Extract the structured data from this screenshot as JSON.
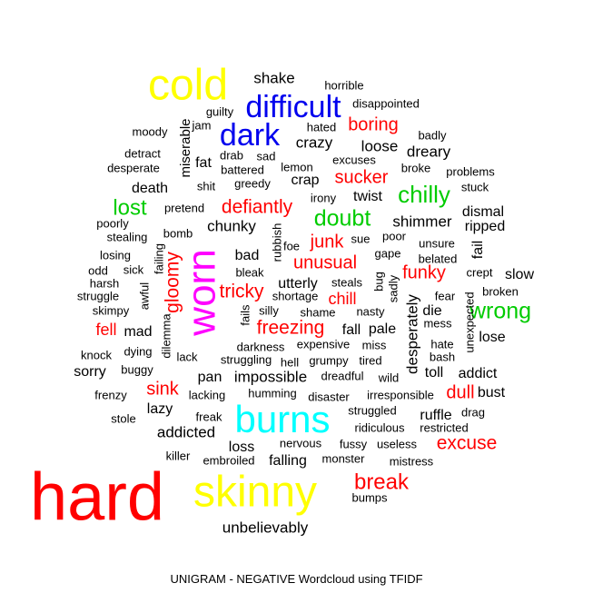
{
  "colors": {
    "black": "#000000",
    "red": "#ff0000",
    "green": "#00cc00",
    "blue": "#0000ee",
    "cyan": "#00ffff",
    "magenta": "#ff00ff",
    "yellow": "#ffff00"
  },
  "caption": "UNIGRAM - NEGATIVE Wordcloud using TFIDF",
  "chart_data": {
    "type": "wordcloud",
    "title": "UNIGRAM - NEGATIVE Wordcloud using TFIDF",
    "words": [
      {
        "text": "hard",
        "color": "red",
        "weight": 1.0
      },
      {
        "text": "skinny",
        "color": "yellow",
        "weight": 0.62
      },
      {
        "text": "cold",
        "color": "yellow",
        "weight": 0.62
      },
      {
        "text": "burns",
        "color": "cyan",
        "weight": 0.55
      },
      {
        "text": "worn",
        "color": "magenta",
        "weight": 0.55
      },
      {
        "text": "difficult",
        "color": "blue",
        "weight": 0.46
      },
      {
        "text": "dark",
        "color": "blue",
        "weight": 0.46
      },
      {
        "text": "break",
        "color": "red",
        "weight": 0.34
      },
      {
        "text": "chilly",
        "color": "green",
        "weight": 0.34
      },
      {
        "text": "doubt",
        "color": "green",
        "weight": 0.32
      },
      {
        "text": "wrong",
        "color": "green",
        "weight": 0.32
      },
      {
        "text": "lost",
        "color": "green",
        "weight": 0.32
      },
      {
        "text": "freezing",
        "color": "red",
        "weight": 0.27
      },
      {
        "text": "defiantly",
        "color": "red",
        "weight": 0.27
      },
      {
        "text": "boring",
        "color": "red",
        "weight": 0.27
      },
      {
        "text": "sucker",
        "color": "red",
        "weight": 0.27
      },
      {
        "text": "gloomy",
        "color": "red",
        "weight": 0.27
      },
      {
        "text": "tricky",
        "color": "red",
        "weight": 0.27
      },
      {
        "text": "unusual",
        "color": "red",
        "weight": 0.27
      },
      {
        "text": "junk",
        "color": "red",
        "weight": 0.27
      },
      {
        "text": "funky",
        "color": "red",
        "weight": 0.27
      },
      {
        "text": "excuse",
        "color": "red",
        "weight": 0.27
      },
      {
        "text": "sink",
        "color": "red",
        "weight": 0.27
      },
      {
        "text": "chill",
        "color": "red",
        "weight": 0.24
      },
      {
        "text": "fell",
        "color": "red",
        "weight": 0.24
      },
      {
        "text": "dull",
        "color": "red",
        "weight": 0.24
      },
      {
        "text": "shake",
        "color": "black",
        "weight": 0.22
      },
      {
        "text": "crazy",
        "color": "black",
        "weight": 0.22
      },
      {
        "text": "loose",
        "color": "black",
        "weight": 0.22
      },
      {
        "text": "dreary",
        "color": "black",
        "weight": 0.22
      },
      {
        "text": "unbelievably",
        "color": "black",
        "weight": 0.22
      },
      {
        "text": "impossible",
        "color": "black",
        "weight": 0.22
      },
      {
        "text": "addicted",
        "color": "black",
        "weight": 0.22
      },
      {
        "text": "desperately",
        "color": "black",
        "weight": 0.22
      },
      {
        "text": "chunky",
        "color": "black",
        "weight": 0.22
      },
      {
        "text": "shimmer",
        "color": "black",
        "weight": 0.2
      },
      {
        "text": "dismal",
        "color": "black",
        "weight": 0.2
      },
      {
        "text": "ripped",
        "color": "black",
        "weight": 0.2
      },
      {
        "text": "slow",
        "color": "black",
        "weight": 0.2
      },
      {
        "text": "lose",
        "color": "black",
        "weight": 0.2
      },
      {
        "text": "miserable",
        "color": "black",
        "weight": 0.2
      },
      {
        "text": "crap",
        "color": "black",
        "weight": 0.2
      },
      {
        "text": "death",
        "color": "black",
        "weight": 0.2
      },
      {
        "text": "twist",
        "color": "black",
        "weight": 0.2
      },
      {
        "text": "fat",
        "color": "black",
        "weight": 0.2
      },
      {
        "text": "bad",
        "color": "black",
        "weight": 0.2
      },
      {
        "text": "pale",
        "color": "black",
        "weight": 0.2
      },
      {
        "text": "utterly",
        "color": "black",
        "weight": 0.2
      },
      {
        "text": "pan",
        "color": "black",
        "weight": 0.2
      },
      {
        "text": "falling",
        "color": "black",
        "weight": 0.2
      },
      {
        "text": "loss",
        "color": "black",
        "weight": 0.2
      },
      {
        "text": "addict",
        "color": "black",
        "weight": 0.2
      },
      {
        "text": "bust",
        "color": "black",
        "weight": 0.2
      },
      {
        "text": "ruffle",
        "color": "black",
        "weight": 0.2
      },
      {
        "text": "toll",
        "color": "black",
        "weight": 0.2
      },
      {
        "text": "lazy",
        "color": "black",
        "weight": 0.2
      },
      {
        "text": "sorry",
        "color": "black",
        "weight": 0.2
      },
      {
        "text": "mad",
        "color": "black",
        "weight": 0.2
      },
      {
        "text": "fail",
        "color": "black",
        "weight": 0.2
      },
      {
        "text": "die",
        "color": "black",
        "weight": 0.2
      },
      {
        "text": "fall",
        "color": "black",
        "weight": 0.2
      },
      {
        "text": "horrible",
        "color": "black",
        "weight": 0.16
      },
      {
        "text": "disappointed",
        "color": "black",
        "weight": 0.16
      },
      {
        "text": "guilty",
        "color": "black",
        "weight": 0.16
      },
      {
        "text": "moody",
        "color": "black",
        "weight": 0.16
      },
      {
        "text": "jam",
        "color": "black",
        "weight": 0.16
      },
      {
        "text": "hated",
        "color": "black",
        "weight": 0.16
      },
      {
        "text": "badly",
        "color": "black",
        "weight": 0.16
      },
      {
        "text": "detract",
        "color": "black",
        "weight": 0.16
      },
      {
        "text": "drab",
        "color": "black",
        "weight": 0.16
      },
      {
        "text": "sad",
        "color": "black",
        "weight": 0.16
      },
      {
        "text": "desperate",
        "color": "black",
        "weight": 0.16
      },
      {
        "text": "battered",
        "color": "black",
        "weight": 0.16
      },
      {
        "text": "lemon",
        "color": "black",
        "weight": 0.16
      },
      {
        "text": "excuses",
        "color": "black",
        "weight": 0.16
      },
      {
        "text": "broke",
        "color": "black",
        "weight": 0.16
      },
      {
        "text": "problems",
        "color": "black",
        "weight": 0.16
      },
      {
        "text": "shit",
        "color": "black",
        "weight": 0.16
      },
      {
        "text": "greedy",
        "color": "black",
        "weight": 0.16
      },
      {
        "text": "stuck",
        "color": "black",
        "weight": 0.16
      },
      {
        "text": "irony",
        "color": "black",
        "weight": 0.16
      },
      {
        "text": "pretend",
        "color": "black",
        "weight": 0.16
      },
      {
        "text": "poorly",
        "color": "black",
        "weight": 0.16
      },
      {
        "text": "stealing",
        "color": "black",
        "weight": 0.16
      },
      {
        "text": "bomb",
        "color": "black",
        "weight": 0.16
      },
      {
        "text": "losing",
        "color": "black",
        "weight": 0.16
      },
      {
        "text": "failing",
        "color": "black",
        "weight": 0.16
      },
      {
        "text": "rubbish",
        "color": "black",
        "weight": 0.16
      },
      {
        "text": "foe",
        "color": "black",
        "weight": 0.16
      },
      {
        "text": "sue",
        "color": "black",
        "weight": 0.16
      },
      {
        "text": "poor",
        "color": "black",
        "weight": 0.16
      },
      {
        "text": "unsure",
        "color": "black",
        "weight": 0.16
      },
      {
        "text": "gape",
        "color": "black",
        "weight": 0.16
      },
      {
        "text": "belated",
        "color": "black",
        "weight": 0.16
      },
      {
        "text": "odd",
        "color": "black",
        "weight": 0.16
      },
      {
        "text": "sick",
        "color": "black",
        "weight": 0.16
      },
      {
        "text": "bleak",
        "color": "black",
        "weight": 0.16
      },
      {
        "text": "crept",
        "color": "black",
        "weight": 0.16
      },
      {
        "text": "harsh",
        "color": "black",
        "weight": 0.16
      },
      {
        "text": "steals",
        "color": "black",
        "weight": 0.16
      },
      {
        "text": "bug",
        "color": "black",
        "weight": 0.16
      },
      {
        "text": "sadly",
        "color": "black",
        "weight": 0.16
      },
      {
        "text": "broken",
        "color": "black",
        "weight": 0.16
      },
      {
        "text": "struggle",
        "color": "black",
        "weight": 0.16
      },
      {
        "text": "awful",
        "color": "black",
        "weight": 0.16
      },
      {
        "text": "shortage",
        "color": "black",
        "weight": 0.16
      },
      {
        "text": "fear",
        "color": "black",
        "weight": 0.16
      },
      {
        "text": "skimpy",
        "color": "black",
        "weight": 0.16
      },
      {
        "text": "fails",
        "color": "black",
        "weight": 0.16
      },
      {
        "text": "silly",
        "color": "black",
        "weight": 0.16
      },
      {
        "text": "shame",
        "color": "black",
        "weight": 0.16
      },
      {
        "text": "nasty",
        "color": "black",
        "weight": 0.16
      },
      {
        "text": "mess",
        "color": "black",
        "weight": 0.16
      },
      {
        "text": "unexpected",
        "color": "black",
        "weight": 0.16
      },
      {
        "text": "dilemma",
        "color": "black",
        "weight": 0.16
      },
      {
        "text": "darkness",
        "color": "black",
        "weight": 0.16
      },
      {
        "text": "expensive",
        "color": "black",
        "weight": 0.16
      },
      {
        "text": "miss",
        "color": "black",
        "weight": 0.16
      },
      {
        "text": "hate",
        "color": "black",
        "weight": 0.16
      },
      {
        "text": "knock",
        "color": "black",
        "weight": 0.16
      },
      {
        "text": "dying",
        "color": "black",
        "weight": 0.16
      },
      {
        "text": "lack",
        "color": "black",
        "weight": 0.16
      },
      {
        "text": "struggling",
        "color": "black",
        "weight": 0.16
      },
      {
        "text": "hell",
        "color": "black",
        "weight": 0.16
      },
      {
        "text": "grumpy",
        "color": "black",
        "weight": 0.16
      },
      {
        "text": "tired",
        "color": "black",
        "weight": 0.16
      },
      {
        "text": "bash",
        "color": "black",
        "weight": 0.16
      },
      {
        "text": "buggy",
        "color": "black",
        "weight": 0.16
      },
      {
        "text": "dreadful",
        "color": "black",
        "weight": 0.16
      },
      {
        "text": "wild",
        "color": "black",
        "weight": 0.16
      },
      {
        "text": "frenzy",
        "color": "black",
        "weight": 0.16
      },
      {
        "text": "lacking",
        "color": "black",
        "weight": 0.16
      },
      {
        "text": "humming",
        "color": "black",
        "weight": 0.16
      },
      {
        "text": "disaster",
        "color": "black",
        "weight": 0.16
      },
      {
        "text": "irresponsible",
        "color": "black",
        "weight": 0.16
      },
      {
        "text": "stole",
        "color": "black",
        "weight": 0.16
      },
      {
        "text": "freak",
        "color": "black",
        "weight": 0.16
      },
      {
        "text": "struggled",
        "color": "black",
        "weight": 0.16
      },
      {
        "text": "drag",
        "color": "black",
        "weight": 0.16
      },
      {
        "text": "ridiculous",
        "color": "black",
        "weight": 0.16
      },
      {
        "text": "restricted",
        "color": "black",
        "weight": 0.16
      },
      {
        "text": "nervous",
        "color": "black",
        "weight": 0.16
      },
      {
        "text": "fussy",
        "color": "black",
        "weight": 0.16
      },
      {
        "text": "useless",
        "color": "black",
        "weight": 0.16
      },
      {
        "text": "killer",
        "color": "black",
        "weight": 0.16
      },
      {
        "text": "embroiled",
        "color": "black",
        "weight": 0.16
      },
      {
        "text": "monster",
        "color": "black",
        "weight": 0.16
      },
      {
        "text": "mistress",
        "color": "black",
        "weight": 0.16
      },
      {
        "text": "bumps",
        "color": "black",
        "weight": 0.16
      }
    ]
  }
}
